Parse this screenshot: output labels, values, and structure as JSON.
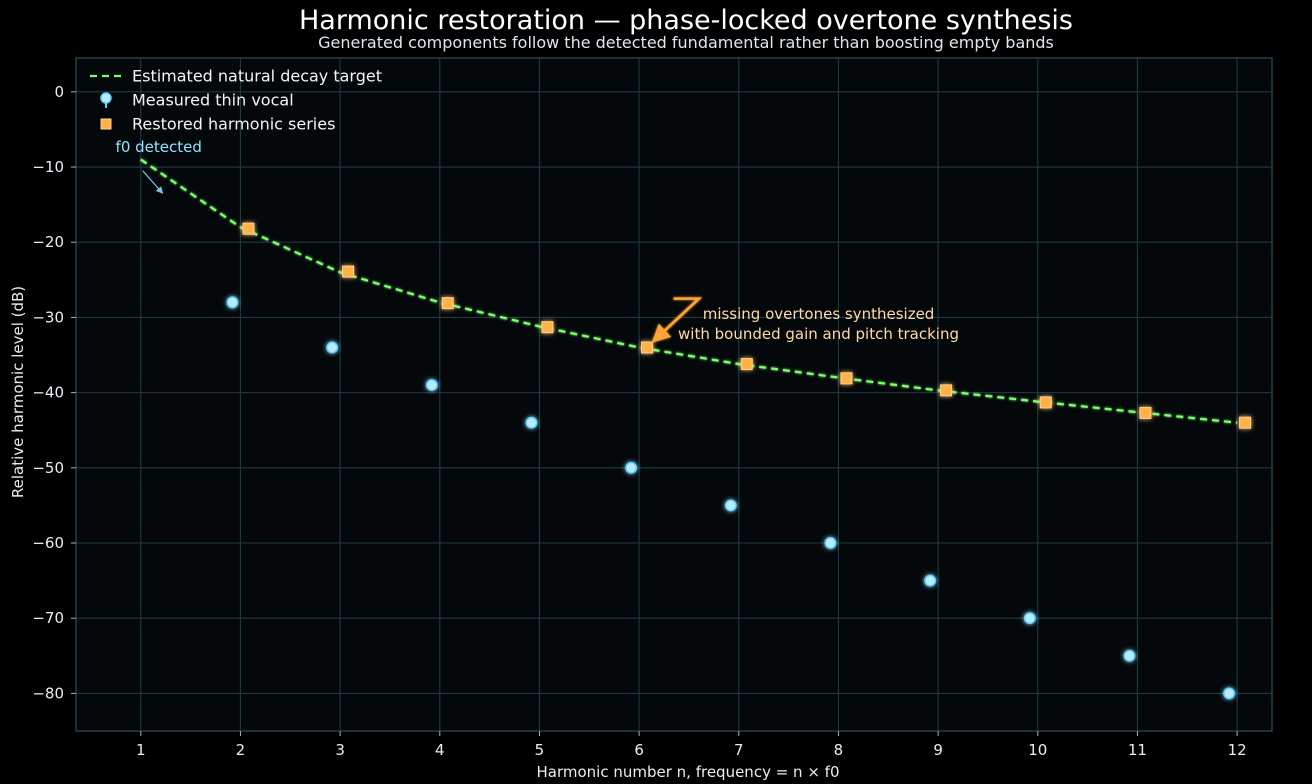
{
  "chart_data": {
    "type": "line",
    "title": "Harmonic restoration — phase-locked overtone synthesis",
    "subtitle": "Generated components follow the detected fundamental rather than boosting empty bands",
    "xlabel": "Harmonic number n, frequency = n × f0",
    "ylabel": "Relative harmonic level (dB)",
    "xlim": [
      0.35,
      12.35
    ],
    "ylim": [
      -85,
      4.5
    ],
    "x_ticks": [
      1,
      2,
      3,
      4,
      5,
      6,
      7,
      8,
      9,
      10,
      11,
      12
    ],
    "y_ticks": [
      0,
      -10,
      -20,
      -30,
      -40,
      -50,
      -60,
      -70,
      -80
    ],
    "grid": true,
    "legend_position": "top-left",
    "stem_baseline": 0,
    "colors": {
      "background": "#000000",
      "axes_background": "#05080b",
      "grid": "#1d3a40",
      "target": "#7cff6e",
      "measured": "#5fd3ff",
      "restored": "#ffa438",
      "annotation_text": "#ffd9a8"
    },
    "series": [
      {
        "name": "Estimated natural decay target",
        "style": "dashed-line",
        "x": [
          1,
          2,
          3,
          4,
          5,
          6,
          7,
          8,
          9,
          10,
          11,
          12
        ],
        "y": [
          -9,
          -18,
          -24,
          -28,
          -31.2,
          -34,
          -36.2,
          -38,
          -39.7,
          -41.2,
          -42.6,
          -44
        ]
      },
      {
        "name": "Measured thin vocal",
        "style": "stem-circle",
        "x": [
          1.92,
          2.92,
          3.92,
          4.92,
          5.92,
          6.92,
          7.92,
          8.92,
          9.92,
          10.92,
          11.92
        ],
        "y": [
          -28,
          -34,
          -39,
          -44,
          -50,
          -55,
          -60,
          -65,
          -70,
          -75,
          -80
        ]
      },
      {
        "name": "Restored harmonic series",
        "style": "stem-square",
        "x": [
          2.08,
          3.08,
          4.08,
          5.08,
          6.08,
          7.08,
          8.08,
          9.08,
          10.08,
          11.08,
          12.08
        ],
        "y": [
          -18.2,
          -23.9,
          -28.1,
          -31.3,
          -34,
          -36.2,
          -38.1,
          -39.7,
          -41.3,
          -42.7,
          -44
        ]
      }
    ],
    "annotations": [
      {
        "text_lines": [
          "missing overtones synthesized",
          "with bounded gain and pitch tracking"
        ],
        "text_x": 7.8,
        "text_y": -30.2,
        "arrow_to_x": 6.1,
        "arrow_to_y": -34,
        "arrow_corner_x": 6.6,
        "arrow_corner_y": -27.5
      },
      {
        "text_lines": [
          "f0 detected"
        ],
        "text_x": 1.18,
        "text_y": -8,
        "arrow_to_x": 1.22,
        "arrow_to_y": -13.5
      }
    ]
  }
}
